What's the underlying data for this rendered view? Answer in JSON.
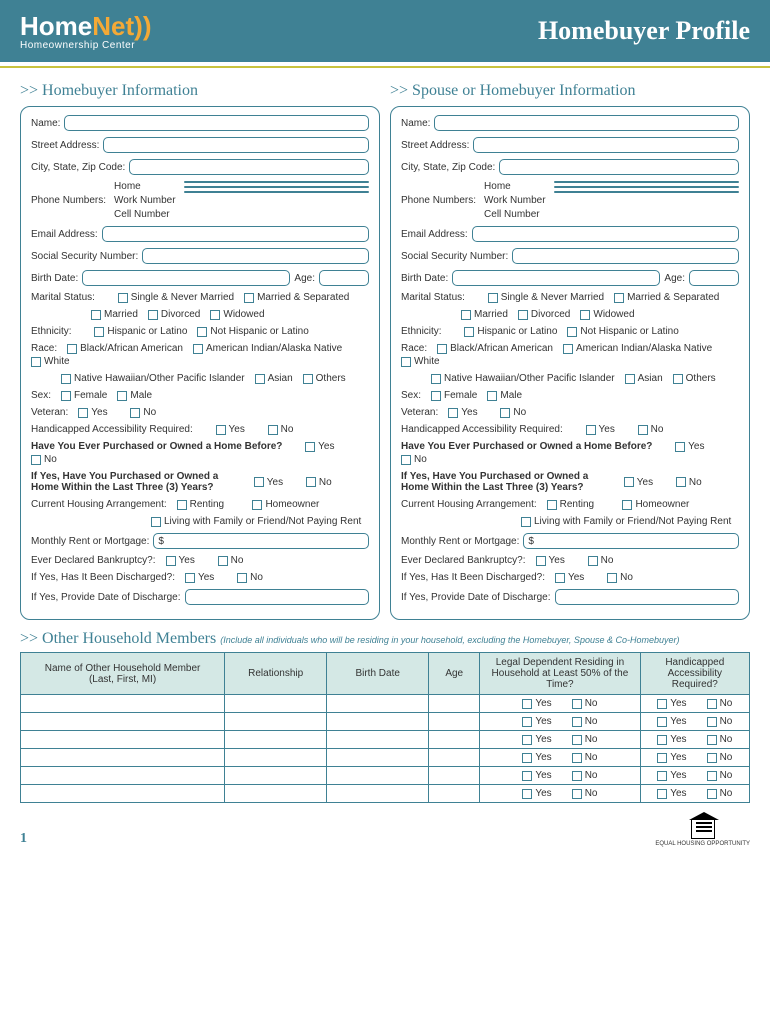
{
  "header": {
    "logo_home": "Home",
    "logo_net": "Net",
    "logo_sub": "Homeownership Center",
    "title": "Homebuyer Profile"
  },
  "sections": {
    "buyer": ">> Homebuyer Information",
    "spouse": ">> Spouse or Homebuyer Information",
    "household": ">> Other Household Members",
    "household_sub": "(Include all individuals who will be residing in your household, excluding the Homebuyer, Spouse & Co-Homebuyer)"
  },
  "labels": {
    "name": "Name:",
    "street": "Street Address:",
    "city": "City, State, Zip Code:",
    "phone": "Phone Numbers:",
    "home": "Home",
    "work": "Work Number",
    "cell": "Cell Number",
    "email": "Email Address:",
    "ssn": "Social Security Number:",
    "birth": "Birth Date:",
    "age": "Age:",
    "marital": "Marital Status:",
    "ethnicity": "Ethnicity:",
    "race": "Race:",
    "sex": "Sex:",
    "veteran": "Veteran:",
    "handicap": "Handicapped Accessibility Required:",
    "purchased": "Have You Ever Purchased or Owned a Home Before?",
    "purchased3": "If Yes, Have You Purchased or Owned a Home Within the Last Three (3) Years?",
    "housing": "Current Housing Arrangement:",
    "rent": "Monthly Rent or Mortgage:",
    "bankruptcy": "Ever Declared Bankruptcy?:",
    "discharged": "If Yes, Has It Been Discharged?:",
    "discharge_date": "If Yes, Provide Date of Discharge:"
  },
  "opts": {
    "single": "Single & Never Married",
    "marr_sep": "Married & Separated",
    "married": "Married",
    "divorced": "Divorced",
    "widowed": "Widowed",
    "hispanic": "Hispanic or Latino",
    "not_hispanic": "Not Hispanic or Latino",
    "black": "Black/African American",
    "amind": "American Indian/Alaska Native",
    "white": "White",
    "hawaiian": "Native Hawaiian/Other Pacific Islander",
    "asian": "Asian",
    "others": "Others",
    "female": "Female",
    "male": "Male",
    "yes": "Yes",
    "no": "No",
    "renting": "Renting",
    "homeowner": "Homeowner",
    "living": "Living with Family or Friend/Not Paying Rent",
    "dollar": "$"
  },
  "hh_table": {
    "cols": [
      "Name of Other Household Member\n(Last, First, MI)",
      "Relationship",
      "Birth Date",
      "Age",
      "Legal Dependent Residing in Household at Least 50% of the Time?",
      "Handicapped Accessibility Required?"
    ],
    "rows": 6
  },
  "footer": {
    "page": "1",
    "eho": "EQUAL HOUSING OPPORTUNITY"
  },
  "colors": {
    "primary": "#3f8194",
    "accent": "#f4a936",
    "line": "#c9c23d",
    "table_header": "#d4e8e5"
  }
}
